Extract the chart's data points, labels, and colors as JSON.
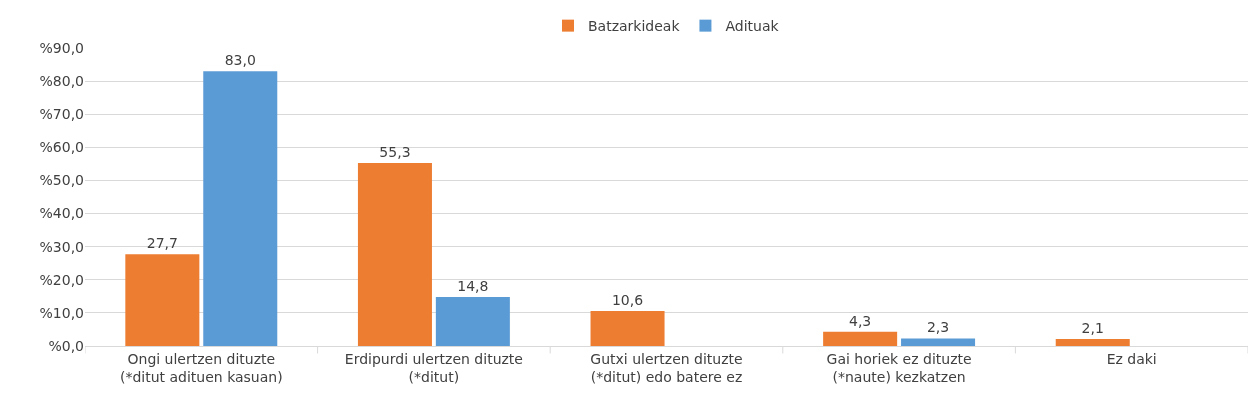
{
  "chart_data": {
    "type": "bar",
    "categories": [
      "Ongi ulertzen dituzte\n(*ditut adituen kasuan)",
      "Erdipurdi ulertzen dituzte\n(*ditut)",
      "Gutxi ulertzen dituzte\n(*ditut) edo batere ez",
      "Gai horiek ez dituzte\n(*naute) kezkatzen",
      "Ez daki"
    ],
    "series": [
      {
        "name": "Batzarkideak",
        "color": "#ed7d31",
        "values": [
          27.7,
          55.3,
          10.6,
          4.3,
          2.1
        ],
        "value_labels": [
          "27,7",
          "55,3",
          "10,6",
          "4,3",
          "2,1"
        ]
      },
      {
        "name": "Adituak",
        "color": "#5b9bd5",
        "values": [
          83.0,
          14.8,
          null,
          2.3,
          null
        ],
        "value_labels": [
          "83,0",
          "14,8",
          null,
          "2,3",
          null
        ]
      }
    ],
    "ylim": [
      0,
      90
    ],
    "yticks": [
      {
        "value": 0,
        "label": "%0,0"
      },
      {
        "value": 10,
        "label": "%10,0"
      },
      {
        "value": 20,
        "label": "%20,0"
      },
      {
        "value": 30,
        "label": "%30,0"
      },
      {
        "value": 40,
        "label": "%40,0"
      },
      {
        "value": 50,
        "label": "%50,0"
      },
      {
        "value": 60,
        "label": "%60,0"
      },
      {
        "value": 70,
        "label": "%70,0"
      },
      {
        "value": 80,
        "label": "%80,0"
      },
      {
        "value": 90,
        "label": "%90,0"
      }
    ],
    "grid": "y",
    "legend": "top"
  }
}
